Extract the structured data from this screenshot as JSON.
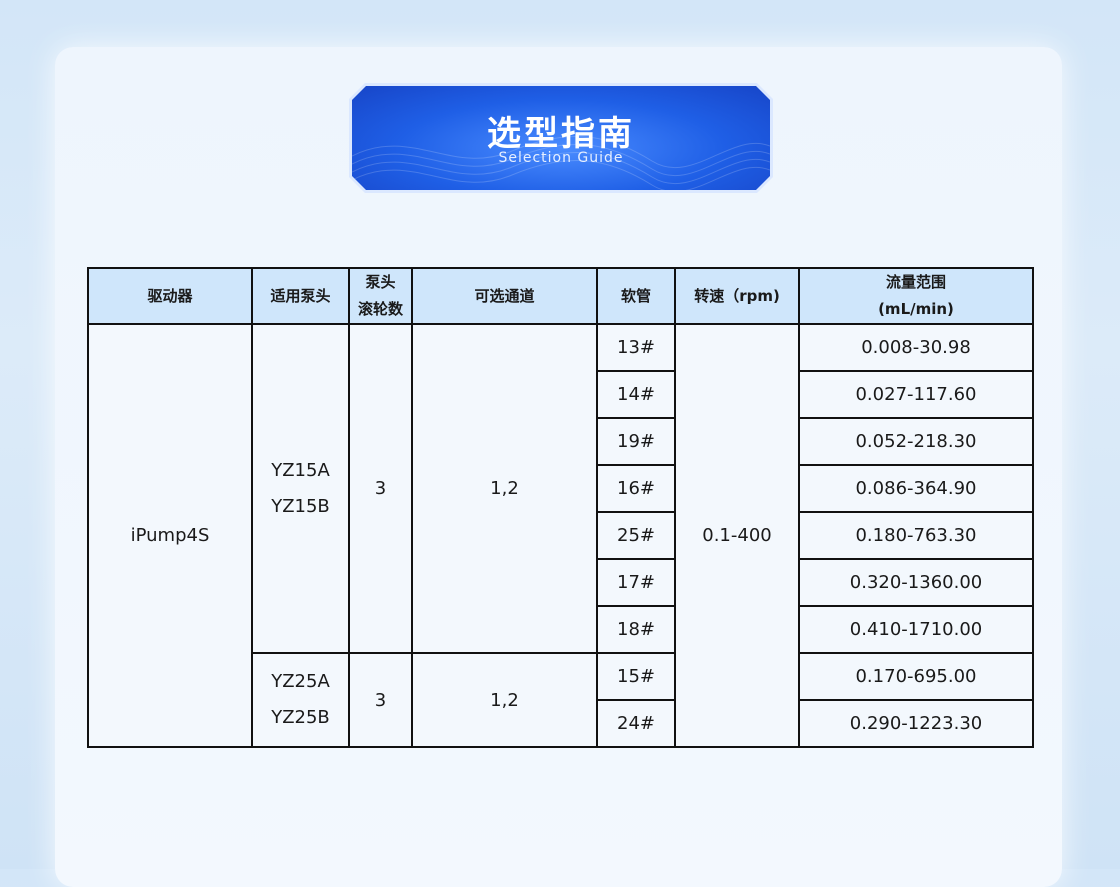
{
  "banner": {
    "title": "选型指南",
    "subtitle": "Selection Guide"
  },
  "table": {
    "headers": [
      "驱动器",
      "适用泵头",
      "泵头",
      "滚轮数",
      "可选通道",
      "软管",
      "转速（rpm)",
      "流量范围",
      "(mL/min)"
    ],
    "driver": "iPump4S",
    "speed": "0.1-400",
    "groups": [
      {
        "heads": [
          "YZ15A",
          "YZ15B"
        ],
        "rollers": "3",
        "channels": "1,2",
        "rows": [
          {
            "tube": "13#",
            "flow": "0.008-30.98"
          },
          {
            "tube": "14#",
            "flow": "0.027-117.60"
          },
          {
            "tube": "19#",
            "flow": "0.052-218.30"
          },
          {
            "tube": "16#",
            "flow": "0.086-364.90"
          },
          {
            "tube": "25#",
            "flow": "0.180-763.30"
          },
          {
            "tube": "17#",
            "flow": "0.320-1360.00"
          },
          {
            "tube": "18#",
            "flow": "0.410-1710.00"
          }
        ]
      },
      {
        "heads": [
          "YZ25A",
          "YZ25B"
        ],
        "rollers": "3",
        "channels": "1,2",
        "rows": [
          {
            "tube": "15#",
            "flow": "0.170-695.00"
          },
          {
            "tube": "24#",
            "flow": "0.290-1223.30"
          }
        ]
      }
    ]
  },
  "colors": {
    "banner": "#1f5fe6",
    "header_bg": "#cfe6fb",
    "border": "#111111"
  }
}
